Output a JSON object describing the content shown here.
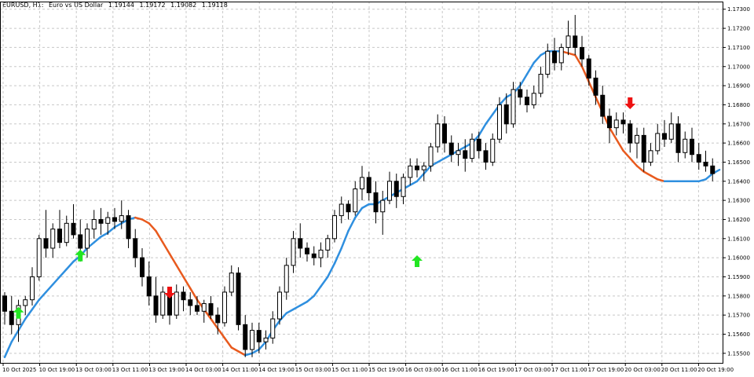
{
  "header": {
    "symbol": "EURUSD, H1:",
    "description": "Euro vs US Dollar",
    "open": "1.19144",
    "high": "1.19172",
    "low": "1.19082",
    "close": "1.19118"
  },
  "colors": {
    "up_line": "#2f8fdf",
    "down_line": "#e85a1e",
    "buy_arrow": "#22e622",
    "sell_arrow": "#ee1111",
    "candle": "#000000",
    "grid": "#c8c8c8"
  },
  "chart_data": {
    "type": "candlestick",
    "title": "",
    "xlabel": "",
    "ylabel": "",
    "ylim": [
      1.1545,
      1.1734
    ],
    "y_ticks": [
      "1.17300",
      "1.17200",
      "1.17100",
      "1.17000",
      "1.16900",
      "1.16800",
      "1.16700",
      "1.16600",
      "1.16500",
      "1.16400",
      "1.16300",
      "1.16200",
      "1.16100",
      "1.16000",
      "1.15900",
      "1.15800",
      "1.15700",
      "1.15600",
      "1.15500"
    ],
    "x_ticks": [
      "10 Oct 2025",
      "10 Oct 19:00",
      "13 Oct 03:00",
      "13 Oct 11:00",
      "13 Oct 19:00",
      "14 Oct 03:00",
      "14 Oct 11:00",
      "14 Oct 19:00",
      "15 Oct 03:00",
      "15 Oct 11:00",
      "15 Oct 19:00",
      "16 Oct 03:00",
      "16 Oct 11:00",
      "16 Oct 19:00",
      "17 Oct 03:00",
      "17 Oct 11:00",
      "17 Oct 19:00",
      "20 Oct 03:00",
      "20 Oct 11:00",
      "20 Oct 19:00"
    ],
    "grid": true,
    "candles": [
      [
        1.158,
        1.1582,
        1.1565,
        1.1572
      ],
      [
        1.1572,
        1.158,
        1.156,
        1.1565
      ],
      [
        1.1565,
        1.1578,
        1.1556,
        1.1575
      ],
      [
        1.1575,
        1.158,
        1.157,
        1.1578
      ],
      [
        1.1578,
        1.1595,
        1.1575,
        1.159
      ],
      [
        1.159,
        1.1612,
        1.1588,
        1.161
      ],
      [
        1.161,
        1.1625,
        1.16,
        1.1605
      ],
      [
        1.1605,
        1.1618,
        1.16,
        1.1615
      ],
      [
        1.1615,
        1.1625,
        1.1605,
        1.1608
      ],
      [
        1.1608,
        1.1622,
        1.1606,
        1.1618
      ],
      [
        1.1618,
        1.1628,
        1.161,
        1.1612
      ],
      [
        1.1612,
        1.162,
        1.1598,
        1.1605
      ],
      [
        1.1605,
        1.1618,
        1.16,
        1.1615
      ],
      [
        1.1615,
        1.1625,
        1.161,
        1.162
      ],
      [
        1.162,
        1.1626,
        1.1612,
        1.1618
      ],
      [
        1.1618,
        1.1624,
        1.1612,
        1.1621
      ],
      [
        1.1621,
        1.1626,
        1.1615,
        1.1619
      ],
      [
        1.1619,
        1.163,
        1.1615,
        1.1622
      ],
      [
        1.1622,
        1.1625,
        1.1605,
        1.161
      ],
      [
        1.161,
        1.1615,
        1.1595,
        1.16
      ],
      [
        1.16,
        1.1605,
        1.1585,
        1.159
      ],
      [
        1.159,
        1.1598,
        1.1575,
        1.158
      ],
      [
        1.158,
        1.159,
        1.1566,
        1.157
      ],
      [
        1.157,
        1.1585,
        1.1568,
        1.1582
      ],
      [
        1.1582,
        1.1584,
        1.1565,
        1.157
      ],
      [
        1.157,
        1.1586,
        1.1568,
        1.1582
      ],
      [
        1.1582,
        1.1585,
        1.1572,
        1.1578
      ],
      [
        1.1578,
        1.1582,
        1.157,
        1.1575
      ],
      [
        1.1575,
        1.158,
        1.157,
        1.1572
      ],
      [
        1.1572,
        1.1578,
        1.1566,
        1.1576
      ],
      [
        1.1576,
        1.158,
        1.1568,
        1.157
      ],
      [
        1.157,
        1.1574,
        1.156,
        1.1566
      ],
      [
        1.1566,
        1.1585,
        1.1564,
        1.1582
      ],
      [
        1.1582,
        1.1596,
        1.158,
        1.1592
      ],
      [
        1.1592,
        1.1595,
        1.1562,
        1.1565
      ],
      [
        1.1565,
        1.157,
        1.1548,
        1.1552
      ],
      [
        1.1552,
        1.1566,
        1.1548,
        1.1562
      ],
      [
        1.1562,
        1.1566,
        1.155,
        1.1556
      ],
      [
        1.1556,
        1.1562,
        1.1552,
        1.1558
      ],
      [
        1.1558,
        1.1572,
        1.1555,
        1.1568
      ],
      [
        1.1568,
        1.1585,
        1.1565,
        1.1582
      ],
      [
        1.1582,
        1.16,
        1.1578,
        1.1596
      ],
      [
        1.1596,
        1.1614,
        1.1592,
        1.161
      ],
      [
        1.161,
        1.1618,
        1.16,
        1.1605
      ],
      [
        1.1605,
        1.1608,
        1.1598,
        1.1602
      ],
      [
        1.1602,
        1.1606,
        1.1596,
        1.16
      ],
      [
        1.16,
        1.1608,
        1.1595,
        1.1604
      ],
      [
        1.1604,
        1.1612,
        1.16,
        1.161
      ],
      [
        1.161,
        1.1625,
        1.1608,
        1.1622
      ],
      [
        1.1622,
        1.1632,
        1.1618,
        1.1628
      ],
      [
        1.1628,
        1.163,
        1.162,
        1.1624
      ],
      [
        1.1624,
        1.164,
        1.1622,
        1.1636
      ],
      [
        1.1636,
        1.1648,
        1.163,
        1.1642
      ],
      [
        1.1642,
        1.1645,
        1.163,
        1.1634
      ],
      [
        1.1634,
        1.164,
        1.1618,
        1.1624
      ],
      [
        1.1624,
        1.1635,
        1.1612,
        1.163
      ],
      [
        1.163,
        1.1645,
        1.1628,
        1.164
      ],
      [
        1.164,
        1.1644,
        1.1626,
        1.1632
      ],
      [
        1.1632,
        1.1644,
        1.1628,
        1.1642
      ],
      [
        1.1642,
        1.1652,
        1.1638,
        1.1648
      ],
      [
        1.1648,
        1.1652,
        1.1642,
        1.1646
      ],
      [
        1.1646,
        1.165,
        1.164,
        1.1648
      ],
      [
        1.1648,
        1.166,
        1.1645,
        1.1658
      ],
      [
        1.1658,
        1.1675,
        1.1655,
        1.167
      ],
      [
        1.167,
        1.1674,
        1.1655,
        1.166
      ],
      [
        1.166,
        1.1664,
        1.165,
        1.1654
      ],
      [
        1.1654,
        1.166,
        1.1648,
        1.1656
      ],
      [
        1.1656,
        1.1662,
        1.1645,
        1.1652
      ],
      [
        1.1652,
        1.1665,
        1.165,
        1.1662
      ],
      [
        1.1662,
        1.1666,
        1.1652,
        1.1656
      ],
      [
        1.1656,
        1.166,
        1.1646,
        1.165
      ],
      [
        1.165,
        1.1665,
        1.1648,
        1.1662
      ],
      [
        1.1662,
        1.1684,
        1.166,
        1.168
      ],
      [
        1.168,
        1.1686,
        1.1665,
        1.167
      ],
      [
        1.167,
        1.1692,
        1.1668,
        1.1688
      ],
      [
        1.1688,
        1.1692,
        1.168,
        1.1684
      ],
      [
        1.1684,
        1.1688,
        1.1676,
        1.168
      ],
      [
        1.168,
        1.169,
        1.1678,
        1.1686
      ],
      [
        1.1686,
        1.17,
        1.1684,
        1.1696
      ],
      [
        1.1696,
        1.1712,
        1.1694,
        1.1708
      ],
      [
        1.1708,
        1.1715,
        1.1698,
        1.1702
      ],
      [
        1.1702,
        1.1712,
        1.1698,
        1.171
      ],
      [
        1.171,
        1.1724,
        1.1706,
        1.1716
      ],
      [
        1.1716,
        1.1727,
        1.1706,
        1.171
      ],
      [
        1.171,
        1.1716,
        1.17,
        1.1704
      ],
      [
        1.1704,
        1.1706,
        1.169,
        1.1694
      ],
      [
        1.1694,
        1.1698,
        1.168,
        1.1685
      ],
      [
        1.1685,
        1.169,
        1.167,
        1.1674
      ],
      [
        1.1674,
        1.1678,
        1.166,
        1.1668
      ],
      [
        1.1668,
        1.1676,
        1.1664,
        1.1672
      ],
      [
        1.1672,
        1.1676,
        1.1665,
        1.167
      ],
      [
        1.167,
        1.1672,
        1.1655,
        1.166
      ],
      [
        1.166,
        1.1668,
        1.1652,
        1.1664
      ],
      [
        1.1664,
        1.1668,
        1.1645,
        1.165
      ],
      [
        1.165,
        1.166,
        1.1648,
        1.1656
      ],
      [
        1.1656,
        1.167,
        1.1654,
        1.1665
      ],
      [
        1.1665,
        1.1672,
        1.1658,
        1.1662
      ],
      [
        1.1662,
        1.1676,
        1.166,
        1.167
      ],
      [
        1.167,
        1.1674,
        1.165,
        1.1655
      ],
      [
        1.1655,
        1.1666,
        1.1652,
        1.1662
      ],
      [
        1.1662,
        1.1668,
        1.165,
        1.1654
      ],
      [
        1.1654,
        1.166,
        1.1646,
        1.165
      ],
      [
        1.165,
        1.1656,
        1.1645,
        1.1648
      ],
      [
        1.1648,
        1.1652,
        1.164,
        1.1644
      ]
    ],
    "series": [
      {
        "colors_by_direction": true,
        "values": [
          1.1548,
          1.1556,
          1.1562,
          1.1568,
          1.1573,
          1.1578,
          1.1582,
          1.1586,
          1.159,
          1.1594,
          1.1598,
          1.1601,
          1.1605,
          1.1608,
          1.1611,
          1.1613,
          1.1616,
          1.1618,
          1.162,
          1.1621,
          1.162,
          1.1618,
          1.1614,
          1.1608,
          1.1602,
          1.1596,
          1.159,
          1.1584,
          1.1578,
          1.1573,
          1.1568,
          1.1563,
          1.1558,
          1.1553,
          1.1551,
          1.1549,
          1.155,
          1.1552,
          1.1556,
          1.1562,
          1.1567,
          1.1571,
          1.1573,
          1.1575,
          1.1577,
          1.158,
          1.1585,
          1.159,
          1.1597,
          1.1605,
          1.1614,
          1.1621,
          1.1626,
          1.1628,
          1.1628,
          1.163,
          1.1632,
          1.1634,
          1.1636,
          1.1638,
          1.164,
          1.1644,
          1.1648,
          1.165,
          1.1652,
          1.1654,
          1.1656,
          1.1658,
          1.166,
          1.1664,
          1.167,
          1.1675,
          1.168,
          1.1684,
          1.1686,
          1.169,
          1.1696,
          1.1702,
          1.1706,
          1.1708,
          1.1708,
          1.1708,
          1.1707,
          1.1706,
          1.17,
          1.1692,
          1.1684,
          1.1676,
          1.1668,
          1.1662,
          1.1656,
          1.1652,
          1.1648,
          1.1645,
          1.1643,
          1.1641,
          1.164,
          1.164,
          1.164,
          1.164,
          1.164,
          1.164,
          1.1641,
          1.1644,
          1.1646
        ]
      }
    ],
    "signals": [
      {
        "type": "buy",
        "bar": 2,
        "price": 1.1571
      },
      {
        "type": "buy",
        "bar": 11,
        "price": 1.1601
      },
      {
        "type": "sell",
        "bar": 24,
        "price": 1.1582
      },
      {
        "type": "buy",
        "bar": 60,
        "price": 1.1598
      },
      {
        "type": "sell",
        "bar": 91,
        "price": 1.1681
      }
    ]
  }
}
